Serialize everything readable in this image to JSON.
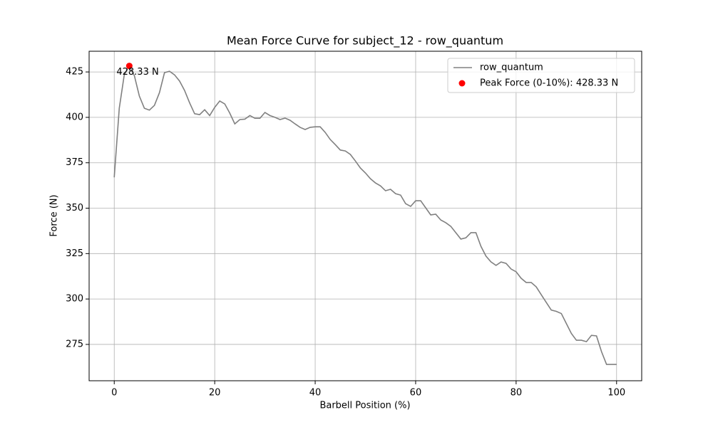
{
  "chart_data": {
    "type": "line",
    "title": "Mean Force Curve for subject_12 - row_quantum",
    "xlabel": "Barbell Position (%)",
    "ylabel": "Force (N)",
    "x": [
      0,
      1,
      2,
      3,
      4,
      5,
      6,
      7,
      8,
      9,
      10,
      11,
      12,
      13,
      14,
      15,
      16,
      17,
      18,
      19,
      20,
      21,
      22,
      23,
      24,
      25,
      26,
      27,
      28,
      29,
      30,
      31,
      32,
      33,
      34,
      35,
      36,
      37,
      38,
      39,
      40,
      41,
      42,
      43,
      44,
      45,
      46,
      47,
      48,
      49,
      50,
      51,
      52,
      53,
      54,
      55,
      56,
      57,
      58,
      59,
      60,
      61,
      62,
      63,
      64,
      65,
      66,
      67,
      68,
      69,
      70,
      71,
      72,
      73,
      74,
      75,
      76,
      77,
      78,
      79,
      80,
      81,
      82,
      83,
      84,
      85,
      86,
      87,
      88,
      89,
      90,
      91,
      92,
      93,
      94,
      95,
      96,
      97,
      98,
      99,
      100
    ],
    "series": [
      {
        "name": "row_quantum",
        "type": "line",
        "color": "#808080",
        "values": [
          367,
          405,
          423.5,
          428.3,
          423,
          411.7,
          405,
          404,
          406.6,
          413.6,
          424.6,
          425.4,
          423.4,
          420,
          414.8,
          408,
          402,
          401.5,
          404.2,
          401,
          405.5,
          409,
          407.4,
          402.3,
          396.4,
          398.8,
          399,
          401,
          399.5,
          399.5,
          402.7,
          401,
          400,
          398.8,
          399.6,
          398.4,
          396.4,
          394.5,
          393.3,
          394.5,
          394.8,
          394.8,
          391.7,
          387.8,
          385,
          382,
          381.5,
          379.6,
          376,
          372.1,
          369.4,
          366.2,
          363.9,
          362.3,
          359.6,
          360.4,
          358,
          357.2,
          352.5,
          351,
          354.1,
          354.1,
          350.2,
          346.3,
          346.7,
          343.5,
          342,
          340,
          336.5,
          333,
          333.7,
          336.5,
          336.5,
          329,
          323.6,
          320.4,
          318.5,
          320.4,
          319.6,
          316.5,
          315,
          311.4,
          309.1,
          309.1,
          306.7,
          302.4,
          298.1,
          293.9,
          293.2,
          292,
          286.5,
          281,
          277.3,
          277.3,
          276.5,
          280,
          279.7,
          271,
          264,
          264,
          264
        ]
      },
      {
        "name": "Peak Force (0-10%): 428.33 N",
        "type": "scatter",
        "color": "#ff0000",
        "x": [
          3
        ],
        "values": [
          428.33
        ],
        "value_labels": [
          "428.33 N"
        ]
      }
    ],
    "xlim": [
      -5,
      105
    ],
    "ylim": [
      255,
      436.4
    ],
    "xticks": [
      0,
      20,
      40,
      60,
      80,
      100
    ],
    "yticks": [
      275,
      300,
      325,
      350,
      375,
      400,
      425
    ],
    "grid": true,
    "legend": "upper right"
  }
}
